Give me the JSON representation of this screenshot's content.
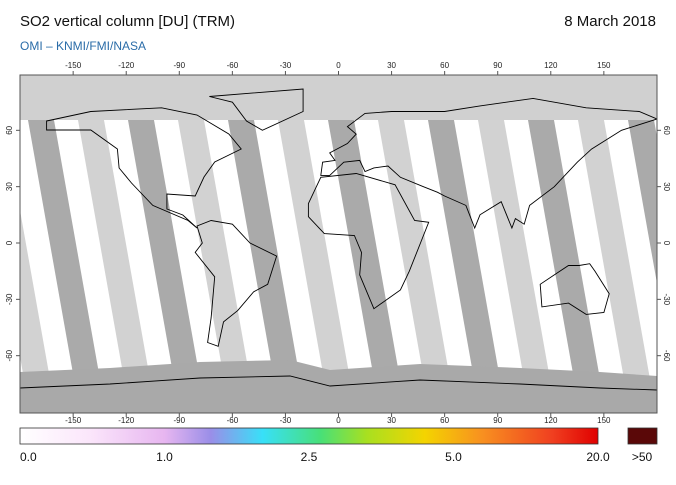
{
  "header": {
    "title": "SO2 vertical column [DU] (TRM)",
    "date": "8 March 2018",
    "credit": "OMI  –  KNMI/FMI/NASA"
  },
  "map": {
    "lon_ticks": [
      -150,
      -120,
      -90,
      -60,
      -30,
      0,
      30,
      60,
      90,
      120,
      150
    ],
    "lat_ticks": [
      60,
      30,
      0,
      -30,
      -60
    ]
  },
  "colorbar": {
    "labels": [
      "0.0",
      "1.0",
      "2.5",
      "5.0",
      "20.0"
    ],
    "over_label": ">50"
  }
}
